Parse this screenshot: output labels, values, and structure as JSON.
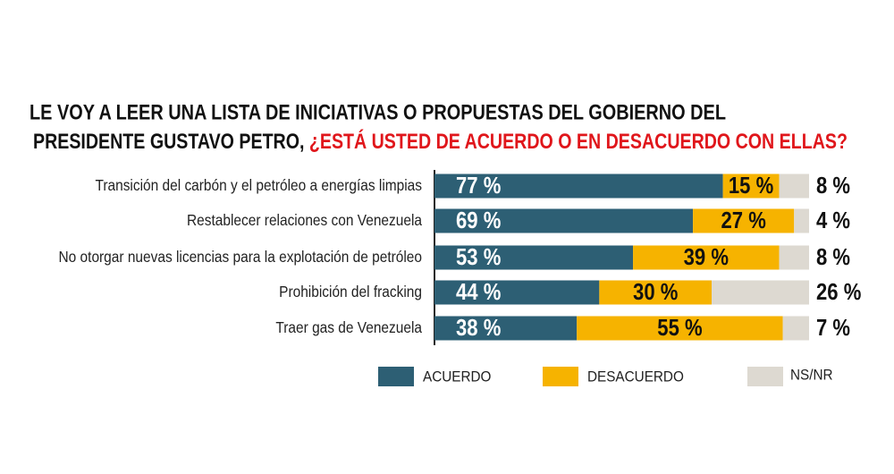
{
  "chart_data": {
    "type": "stacked-bar",
    "title": {
      "lines": [
        "LE VOY A LEER UNA LISTA DE INICIATIVAS O PROPUESTAS DEL  GOBIERNO DEL",
        "PRESIDENTE GUSTAVO PETRO,"
      ],
      "question": "¿ESTÁ USTED DE ACUERDO O EN DESACUERDO CON ELLAS?"
    },
    "categories": [
      "Transición del carbón y el petróleo a energías limpias",
      "Restablecer relaciones con Venezuela",
      "No otorgar nuevas licencias para la explotación de petróleo",
      "Prohibición del fracking",
      "Traer gas de Venezuela"
    ],
    "xlim": [
      0,
      100
    ],
    "series": [
      {
        "name": "ACUERDO",
        "color": "#2d5f74",
        "values": [
          77,
          69,
          53,
          44,
          38
        ],
        "value_labels": [
          "77 %",
          "69 %",
          "53 %",
          "44 %",
          "38 %"
        ]
      },
      {
        "name": "DESACUERDO",
        "color": "#f6b300",
        "values": [
          15,
          27,
          39,
          30,
          55
        ],
        "value_labels": [
          "15 %",
          "27 %",
          "39 %",
          "30 %",
          "55 %"
        ]
      },
      {
        "name": "NS/NR",
        "color": "#ddd9d1",
        "values": [
          8,
          4,
          8,
          26,
          7
        ],
        "value_labels": [
          "8 %",
          "4 %",
          "8 %",
          "26 %",
          "7 %"
        ]
      }
    ]
  }
}
